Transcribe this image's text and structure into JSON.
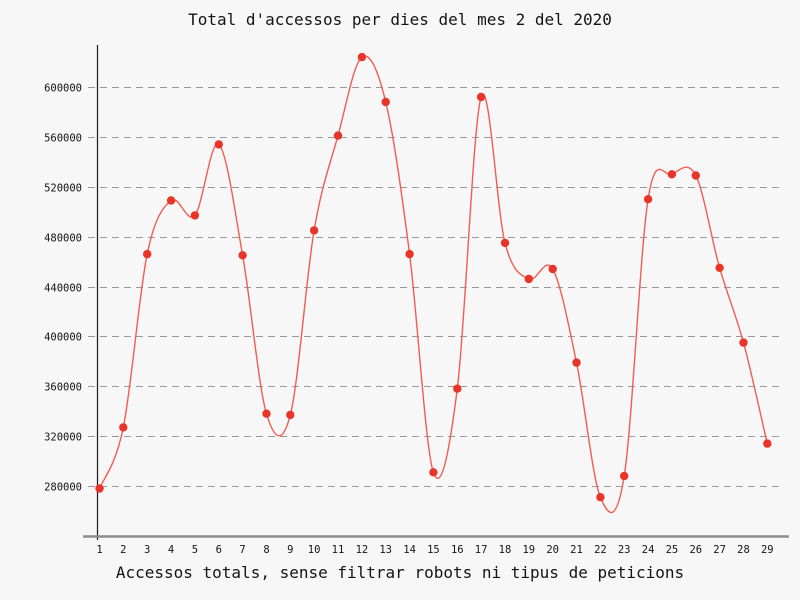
{
  "chart_data": {
    "type": "line",
    "title": "Total d'accessos per dies del mes 2 del 2020",
    "xlabel": "Accessos totals, sense filtrar robots ni tipus de peticions",
    "ylabel": "",
    "x": [
      1,
      2,
      3,
      4,
      5,
      6,
      7,
      8,
      9,
      10,
      11,
      12,
      13,
      14,
      15,
      16,
      17,
      18,
      19,
      20,
      21,
      22,
      23,
      24,
      25,
      26,
      27,
      28,
      29
    ],
    "values": [
      278000,
      327000,
      466000,
      509000,
      497000,
      554000,
      465000,
      338000,
      337000,
      485000,
      561000,
      624000,
      588000,
      466000,
      291000,
      358000,
      592000,
      475000,
      446000,
      454000,
      379000,
      271000,
      288000,
      510000,
      530000,
      529000,
      455000,
      395000,
      314000
    ],
    "yticks": [
      280000,
      320000,
      360000,
      400000,
      440000,
      480000,
      520000,
      560000,
      600000
    ],
    "ylim": [
      240000,
      634000
    ],
    "xlim": [
      1,
      29
    ],
    "grid": "horizontal-dashed",
    "legend": null,
    "smooth": true,
    "marker": "circle",
    "colors": {
      "line": "#f25c52",
      "marker": "#e8352a",
      "grid": "#999999",
      "axis_y": "#1a1a1a",
      "axis_x": "#8c8c8c",
      "text": "#141414",
      "background": "#f7f7f7"
    }
  }
}
